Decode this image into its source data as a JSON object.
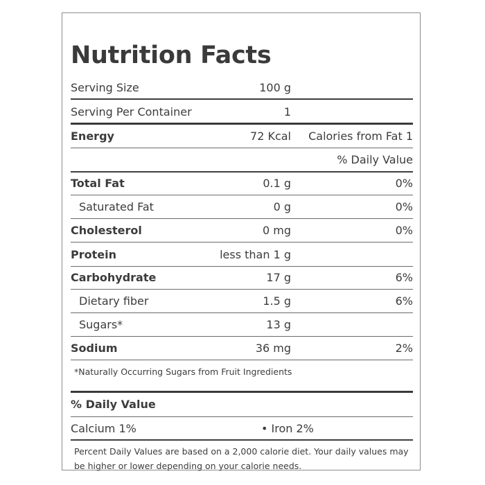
{
  "title": "Nutrition Facts",
  "rows": [
    {
      "label": "Serving Size",
      "amount": "100 g",
      "pct": ""
    },
    {
      "label": "Serving Per Container",
      "amount": "1",
      "pct": ""
    },
    {
      "label": "Energy",
      "amount": "72 Kcal",
      "pct": "Calories from Fat 1"
    },
    {
      "label": "",
      "amount": "",
      "pct": "% Daily Value"
    },
    {
      "label": "Total Fat",
      "amount": "0.1 g",
      "pct": "0%"
    },
    {
      "label": "Saturated Fat",
      "amount": "0 g",
      "pct": "0%"
    },
    {
      "label": "Cholesterol",
      "amount": "0 mg",
      "pct": "0%"
    },
    {
      "label": "Protein",
      "amount": "less than 1 g",
      "pct": ""
    },
    {
      "label": "Carbohydrate",
      "amount": "17 g",
      "pct": "6%"
    },
    {
      "label": "Dietary fiber",
      "amount": "1.5 g",
      "pct": "6%"
    },
    {
      "label": "Sugars*",
      "amount": "13 g",
      "pct": ""
    },
    {
      "label": "Sodium",
      "amount": "36 mg",
      "pct": "2%"
    }
  ],
  "sugar_note": "*Naturally Occurring Sugars from Fruit Ingredients",
  "daily_value_heading": "% Daily Value",
  "calcium": "Calcium 1%",
  "iron": "• Iron 2%",
  "footer_line1": "Percent Daily Values are based on a 2,000 calorie diet. Your daily values may",
  "footer_line2": "be higher or lower depending on your calorie needs."
}
